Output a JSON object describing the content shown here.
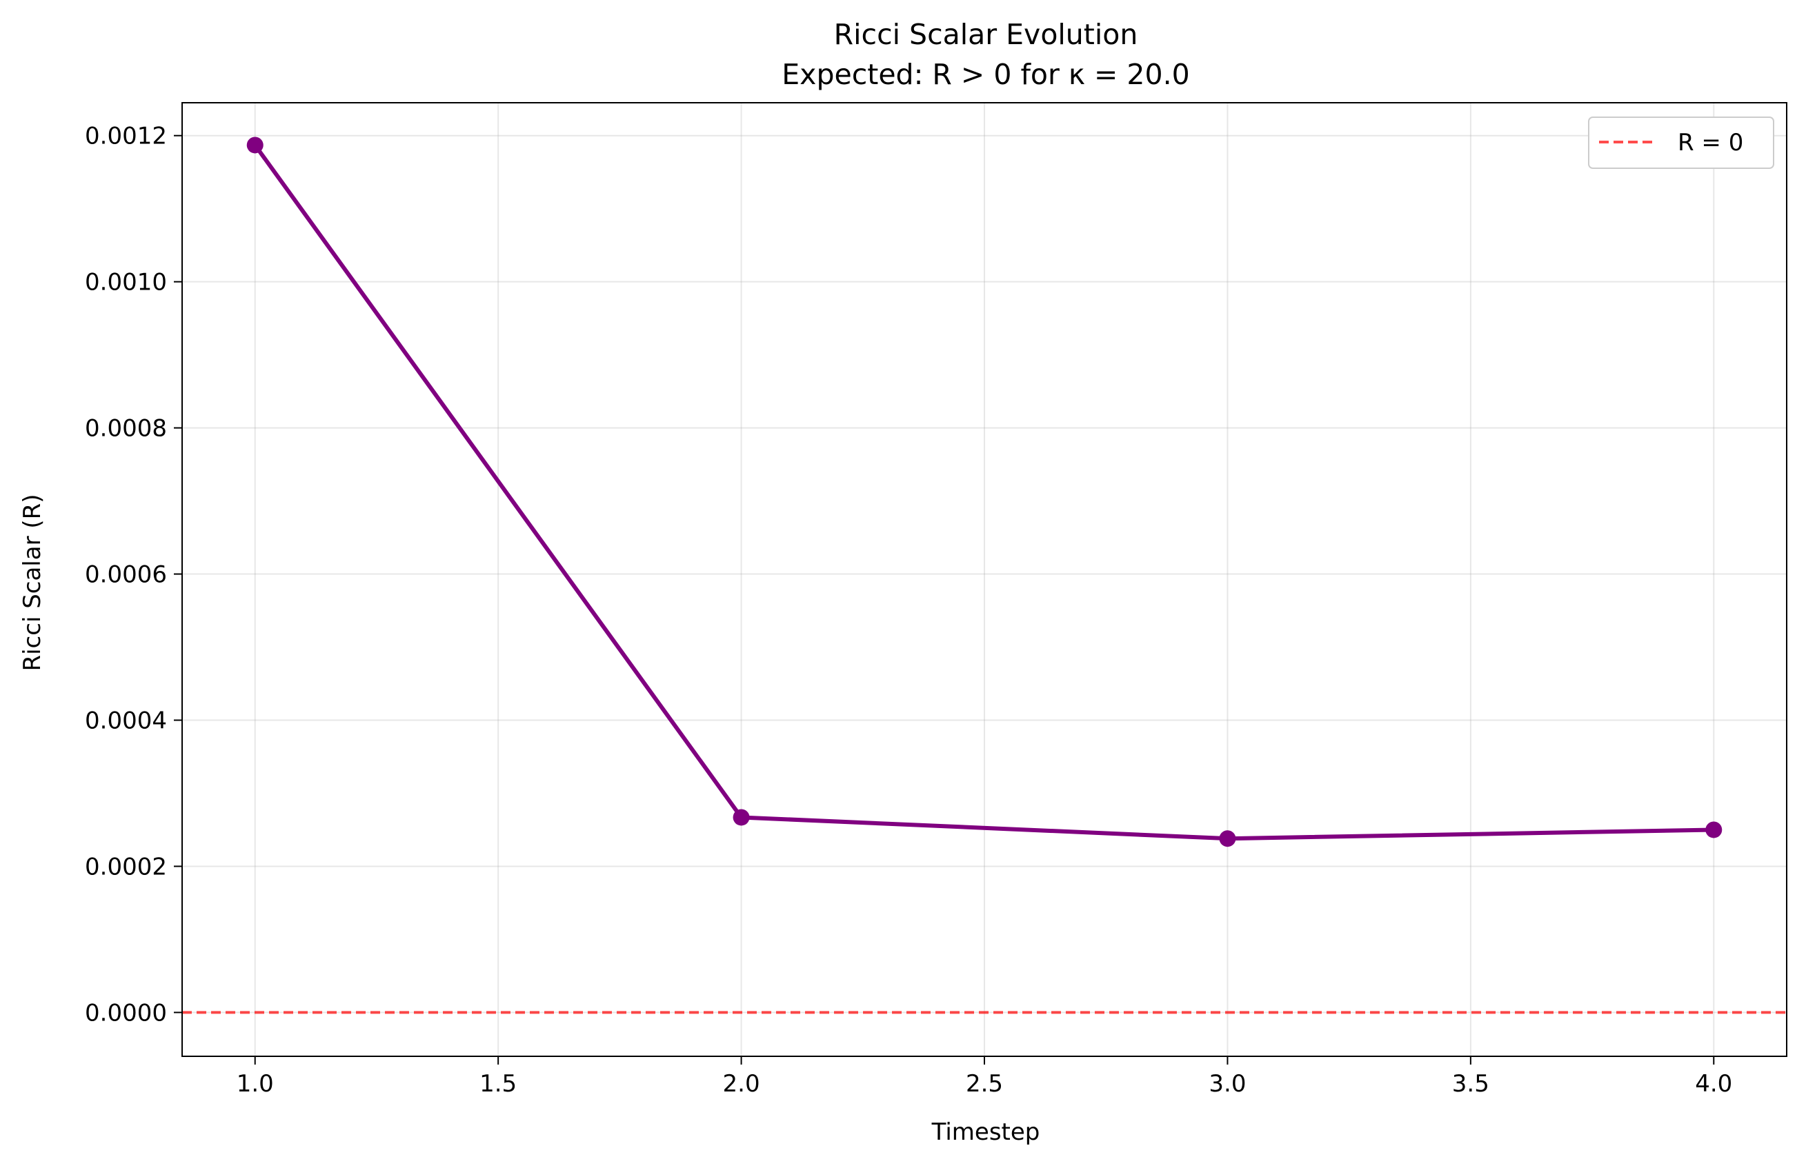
{
  "chart_data": {
    "type": "line",
    "title": "Ricci Scalar Evolution",
    "subtitle": "Expected: R > 0 for κ = 20.0",
    "xlabel": "Timestep",
    "ylabel": "Ricci Scalar (R)",
    "xlim": [
      0.85,
      4.15
    ],
    "ylim": [
      -6e-05,
      0.001245
    ],
    "x_ticks": [
      1.0,
      1.5,
      2.0,
      2.5,
      3.0,
      3.5,
      4.0
    ],
    "x_tick_labels": [
      "1.0",
      "1.5",
      "2.0",
      "2.5",
      "3.0",
      "3.5",
      "4.0"
    ],
    "y_ticks": [
      0.0,
      0.0002,
      0.0004,
      0.0006,
      0.0008,
      0.001,
      0.0012
    ],
    "y_tick_labels": [
      "0.0000",
      "0.0002",
      "0.0004",
      "0.0006",
      "0.0008",
      "0.0010",
      "0.0012"
    ],
    "grid": true,
    "legend_position": "top-right",
    "series": [
      {
        "x": [
          1,
          2,
          3,
          4
        ],
        "y": [
          0.001187,
          0.000267,
          0.000238,
          0.00025
        ],
        "color": "#800080"
      }
    ],
    "reference_line": {
      "label": "R = 0",
      "y": 0.0,
      "color": "#ff0000",
      "style": "dashed"
    }
  }
}
